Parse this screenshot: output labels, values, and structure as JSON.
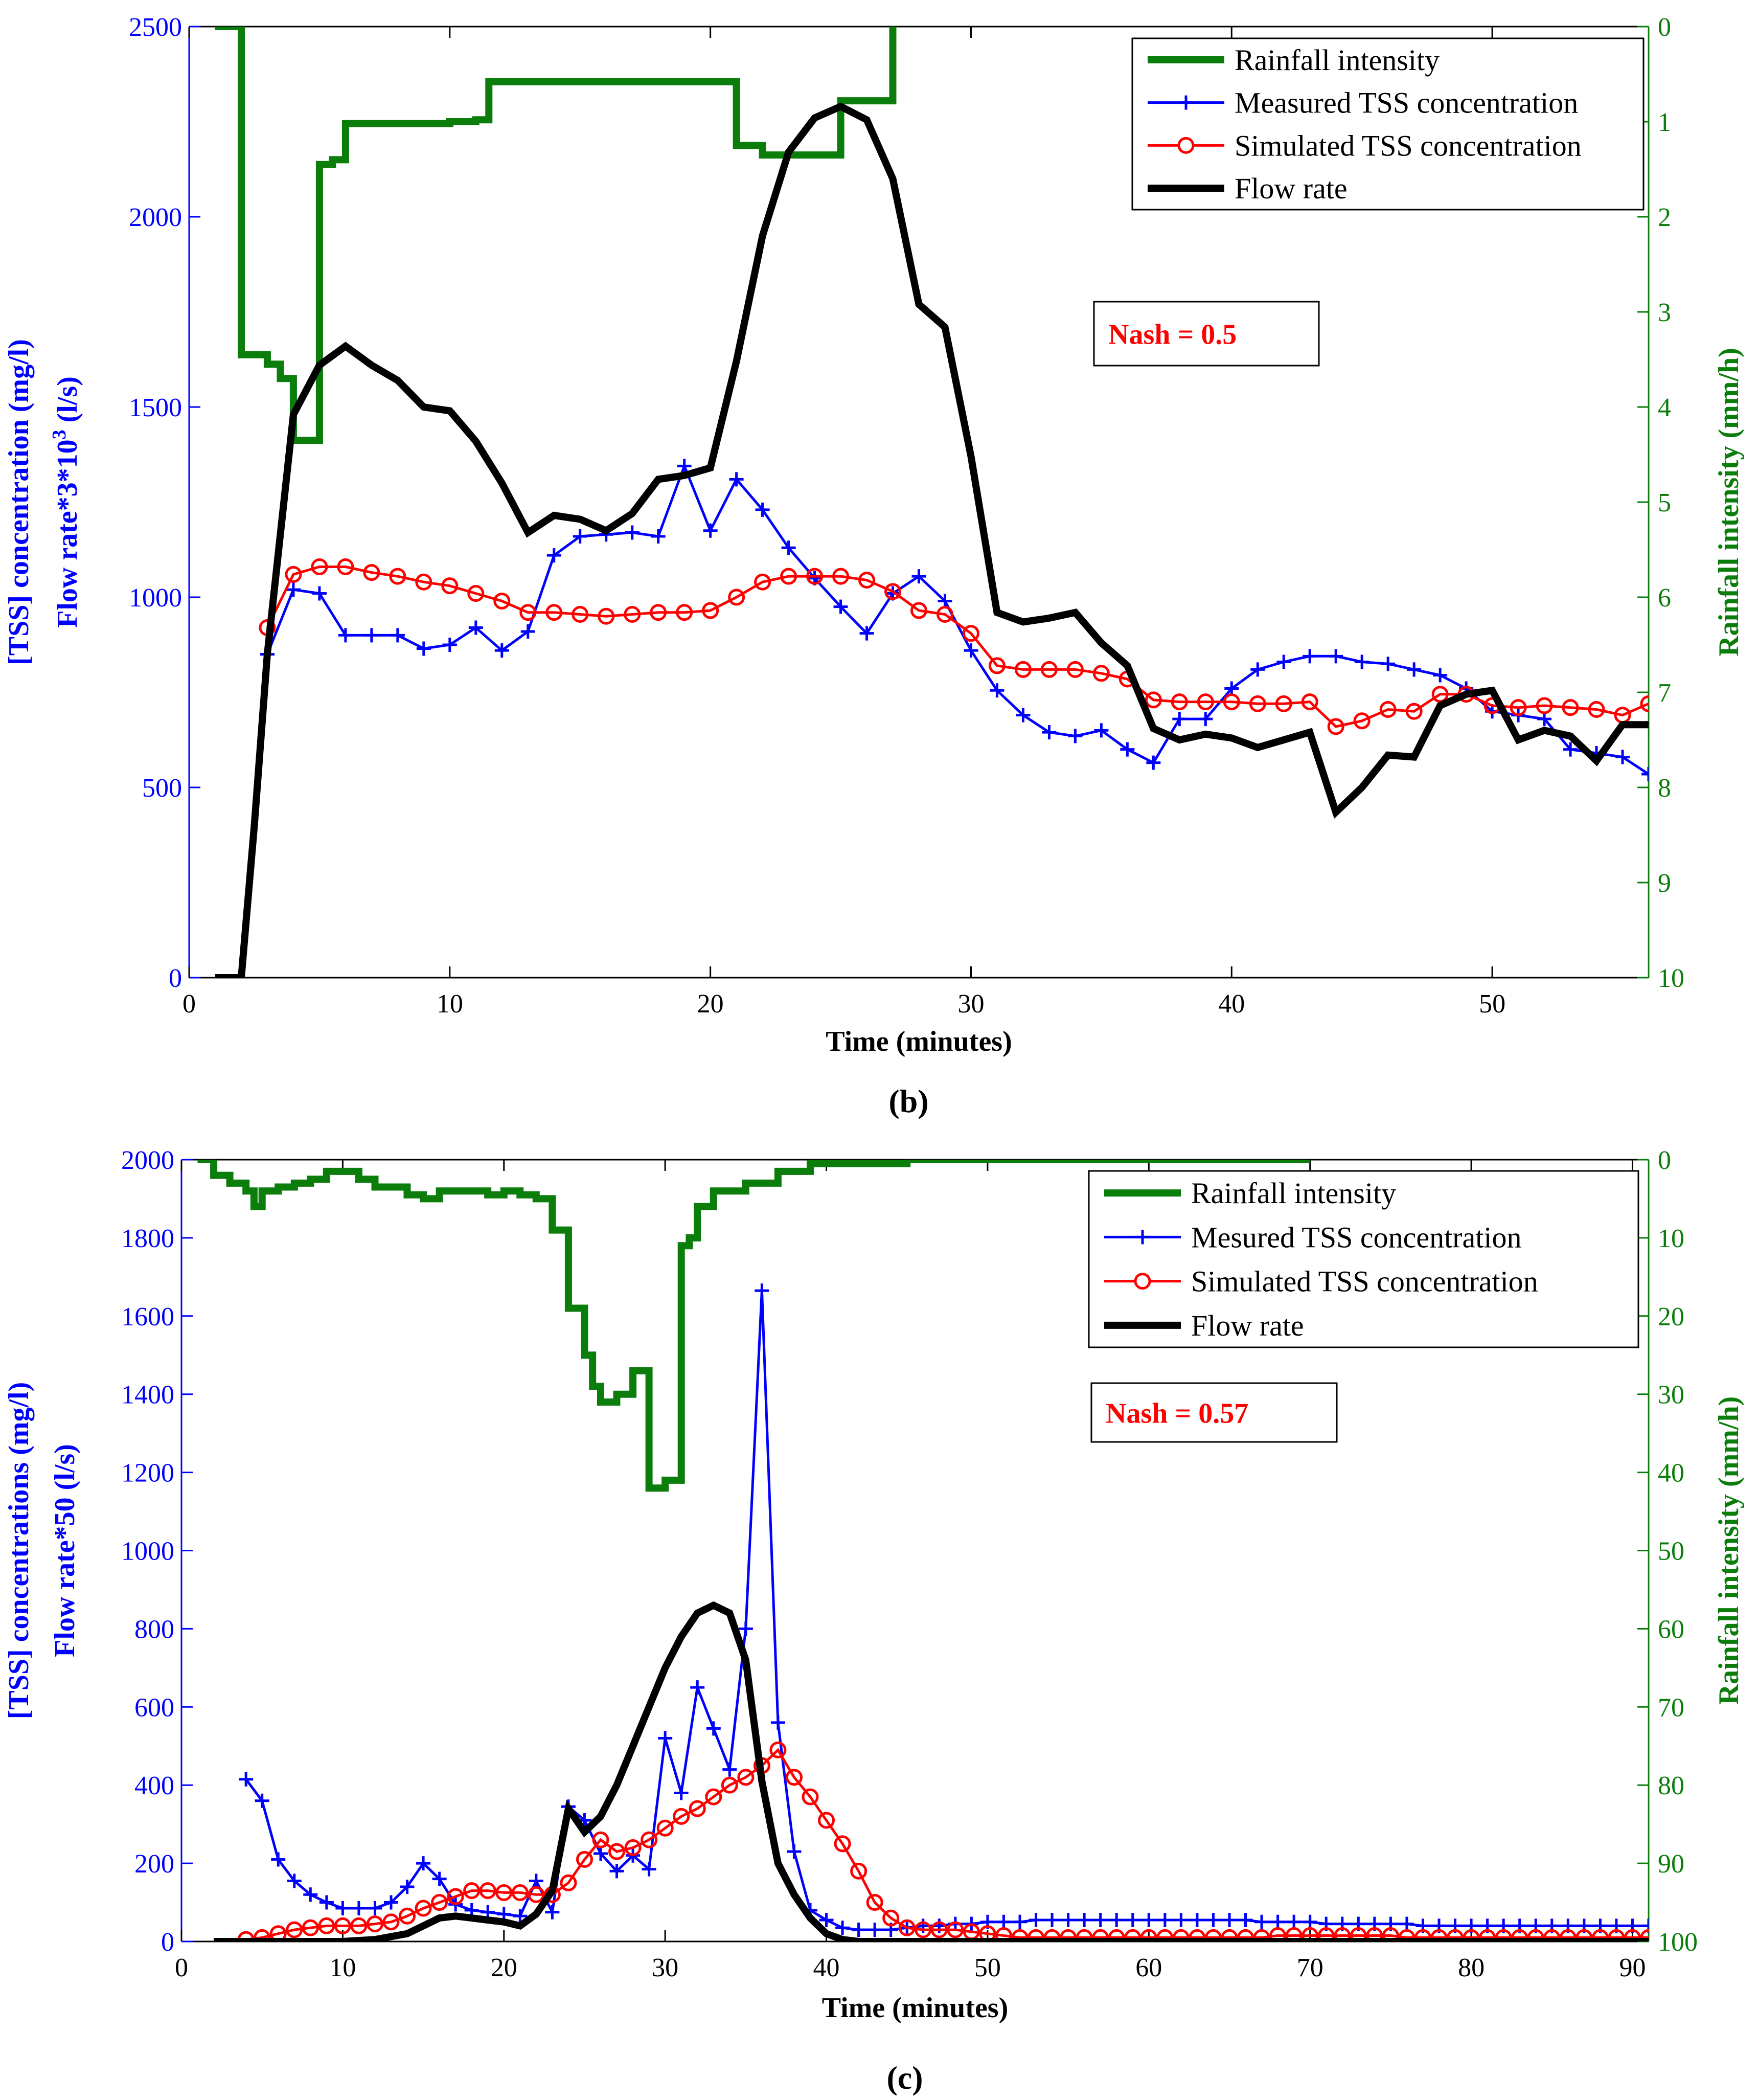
{
  "colors": {
    "rain": "#0b7d0b",
    "measured": "#0000ff",
    "simulated": "#ff0000",
    "flow": "#000000",
    "left_axis": "#0000ff",
    "right_axis": "#0b7d0b"
  },
  "chart_data": [
    {
      "type": "line",
      "panel_label": "(b)",
      "xlabel": "Time (minutes)",
      "ylabel_line1": "[TSS] concentration (mg/l)",
      "ylabel_line2": "Flow rate*3*10",
      "ylabel_line2_sup": "3",
      "ylabel_line2_tail": " (l/s)",
      "y2label": "Rainfall intensity (mm/h)",
      "xlim": [
        0,
        56
      ],
      "ylim": [
        0,
        2500
      ],
      "y2lim": [
        0,
        10
      ],
      "y2_reversed": true,
      "xticks": [
        0,
        10,
        20,
        30,
        40,
        50
      ],
      "yticks": [
        0,
        500,
        1000,
        1500,
        2000,
        2500
      ],
      "y2ticks": [
        0,
        1,
        2,
        3,
        4,
        5,
        6,
        7,
        8,
        9,
        10
      ],
      "legend": [
        "Rainfall intensity",
        "Measured TSS concentration",
        "Simulated TSS concentration",
        "Flow rate"
      ],
      "legend_position": "top-right",
      "annotation": "Nash = 0.5",
      "series": [
        {
          "name": "Rainfall intensity",
          "axis": "y2",
          "step": true,
          "x": [
            1,
            2,
            2,
            3,
            3,
            3.5,
            3.5,
            4,
            4,
            4.5,
            4.5,
            5,
            5,
            5.5,
            5.5,
            6,
            6,
            10,
            10,
            11,
            11,
            11.5,
            11.5,
            21,
            21,
            22,
            22,
            25,
            25,
            27,
            27
          ],
          "y": [
            0,
            0,
            3.45,
            3.45,
            3.55,
            3.55,
            3.7,
            3.7,
            4.35,
            4.35,
            4.35,
            4.35,
            1.45,
            1.45,
            1.4,
            1.4,
            1.02,
            1.02,
            1.0,
            1.0,
            0.98,
            0.98,
            0.58,
            0.58,
            1.25,
            1.25,
            1.35,
            1.35,
            0.78,
            0.78,
            0
          ]
        },
        {
          "name": "Measured TSS concentration",
          "axis": "y",
          "marker": "plus",
          "x": [
            3,
            4,
            5,
            6,
            7,
            8,
            9,
            10,
            11,
            12,
            13,
            14,
            15,
            16,
            17,
            18,
            19,
            20,
            21,
            22,
            23,
            24,
            25,
            26,
            27,
            28,
            29,
            30,
            31,
            32,
            33,
            34,
            35,
            36,
            37,
            38,
            39,
            40,
            41,
            42,
            43,
            44,
            45,
            46,
            47,
            48,
            49,
            50,
            51,
            52,
            53,
            54,
            55,
            56
          ],
          "y": [
            850,
            1020,
            1010,
            900,
            900,
            900,
            865,
            875,
            920,
            860,
            910,
            1110,
            1160,
            1165,
            1170,
            1160,
            1345,
            1175,
            1310,
            1230,
            1130,
            1050,
            975,
            905,
            1010,
            1055,
            990,
            860,
            755,
            690,
            645,
            635,
            650,
            600,
            565,
            680,
            680,
            760,
            810,
            830,
            845,
            845,
            830,
            825,
            810,
            795,
            760,
            700,
            690,
            680,
            600,
            590,
            580,
            535
          ]
        },
        {
          "name": "Simulated TSS concentration",
          "axis": "y",
          "marker": "circle",
          "x": [
            3,
            4,
            5,
            6,
            7,
            8,
            9,
            10,
            11,
            12,
            13,
            14,
            15,
            16,
            17,
            18,
            19,
            20,
            21,
            22,
            23,
            24,
            25,
            26,
            27,
            28,
            29,
            30,
            31,
            32,
            33,
            34,
            35,
            36,
            37,
            38,
            39,
            40,
            41,
            42,
            43,
            44,
            45,
            46,
            47,
            48,
            49,
            50,
            51,
            52,
            53,
            54,
            55,
            56
          ],
          "y": [
            920,
            1060,
            1080,
            1080,
            1065,
            1055,
            1040,
            1030,
            1010,
            990,
            960,
            960,
            955,
            950,
            955,
            960,
            960,
            965,
            1000,
            1040,
            1055,
            1055,
            1055,
            1045,
            1015,
            965,
            955,
            905,
            820,
            810,
            810,
            810,
            800,
            785,
            730,
            725,
            725,
            725,
            720,
            720,
            725,
            660,
            675,
            705,
            700,
            745,
            745,
            715,
            710,
            715,
            710,
            705,
            690,
            720
          ]
        },
        {
          "name": "Flow rate",
          "axis": "y",
          "x": [
            1,
            2,
            2.5,
            3,
            4,
            5,
            6,
            7,
            8,
            9,
            10,
            11,
            12,
            13,
            14,
            15,
            16,
            17,
            18,
            19,
            20,
            21,
            22,
            23,
            24,
            25,
            26,
            27,
            28,
            29,
            30,
            31,
            32,
            33,
            34,
            35,
            36,
            37,
            38,
            39,
            40,
            41,
            42,
            43,
            44,
            45,
            46,
            47,
            48,
            49,
            50,
            51,
            52,
            53,
            54,
            55,
            56
          ],
          "y": [
            0,
            0,
            400,
            850,
            1480,
            1610,
            1660,
            1610,
            1570,
            1500,
            1490,
            1410,
            1300,
            1170,
            1215,
            1205,
            1175,
            1220,
            1310,
            1320,
            1340,
            1620,
            1950,
            2170,
            2260,
            2290,
            2255,
            2100,
            1770,
            1710,
            1370,
            960,
            935,
            945,
            960,
            880,
            820,
            655,
            625,
            640,
            630,
            605,
            625,
            645,
            435,
            500,
            585,
            580,
            715,
            745,
            755,
            625,
            650,
            635,
            570,
            665,
            665
          ]
        }
      ]
    },
    {
      "type": "line",
      "panel_label": "(c)",
      "xlabel": "Time (minutes)",
      "ylabel_line1": "[TSS] concentrations (mg/l)",
      "ylabel_line2": "Flow rate*50 (l/s)",
      "y2label": "Rainfall intensity (mm/h)",
      "xlim": [
        0,
        91
      ],
      "ylim": [
        0,
        2000
      ],
      "y2lim": [
        0,
        100
      ],
      "y2_reversed": true,
      "xticks": [
        0,
        10,
        20,
        30,
        40,
        50,
        60,
        70,
        80,
        90
      ],
      "yticks": [
        0,
        200,
        400,
        600,
        800,
        1000,
        1200,
        1400,
        1600,
        1800,
        2000
      ],
      "y2ticks": [
        0,
        10,
        20,
        30,
        40,
        50,
        60,
        70,
        80,
        90,
        100
      ],
      "legend": [
        "Rainfall intensity",
        "Mesured TSS concentration",
        "Simulated TSS concentration",
        "Flow rate"
      ],
      "legend_position": "top-right",
      "annotation": "Nash = 0.57",
      "series": [
        {
          "name": "Rainfall intensity",
          "axis": "y2",
          "step": true,
          "x": [
            1,
            2,
            2,
            3,
            3,
            4,
            4,
            4.5,
            4.5,
            5,
            5,
            6,
            6,
            7,
            7,
            8,
            8,
            9,
            9,
            11,
            11,
            12,
            12,
            14,
            14,
            15,
            15,
            16,
            16,
            19,
            19,
            20,
            20,
            21,
            21,
            22,
            22,
            23,
            23,
            24,
            24,
            25,
            25,
            25.5,
            25.5,
            26,
            26,
            27,
            27,
            28,
            28,
            29,
            29,
            30,
            30,
            31,
            31,
            31.5,
            31.5,
            32,
            32,
            33,
            33,
            35,
            35,
            37,
            37,
            39,
            39,
            45,
            45,
            70
          ],
          "y": [
            0,
            0,
            2,
            2,
            3,
            3,
            4,
            4,
            6,
            6,
            4,
            4,
            3.5,
            3.5,
            3,
            3,
            2.5,
            2.5,
            1.5,
            1.5,
            2.5,
            2.5,
            3.5,
            3.5,
            4.5,
            4.5,
            5,
            5,
            4,
            4,
            4.5,
            4.5,
            4,
            4,
            4.5,
            4.5,
            5,
            5,
            9,
            9,
            19,
            19,
            25,
            25,
            29,
            29,
            31,
            31,
            30,
            30,
            27,
            27,
            42,
            42,
            41,
            41,
            11,
            11,
            10,
            10,
            6,
            6,
            4,
            4,
            3,
            3,
            1.5,
            1.5,
            0.5,
            0.5,
            0,
            0
          ]
        },
        {
          "name": "Mesured TSS concentration",
          "axis": "y",
          "marker": "plus",
          "x": [
            4,
            5,
            6,
            7,
            8,
            9,
            10,
            11,
            12,
            13,
            14,
            15,
            16,
            17,
            18,
            19,
            20,
            21,
            22,
            23,
            24,
            25,
            26,
            27,
            28,
            29,
            30,
            31,
            32,
            33,
            34,
            35,
            36,
            37,
            38,
            39,
            40,
            41,
            42,
            43,
            44,
            45,
            46,
            47,
            48,
            49,
            50,
            51,
            52,
            53,
            54,
            55,
            56,
            57,
            58,
            59,
            60,
            61,
            62,
            63,
            64,
            65,
            66,
            67,
            68,
            69,
            70,
            71,
            72,
            73,
            74,
            75,
            76,
            77,
            78,
            79,
            80,
            81,
            82,
            83,
            84,
            85,
            86,
            87,
            88,
            89,
            90,
            91
          ],
          "y": [
            415,
            360,
            210,
            155,
            120,
            100,
            85,
            85,
            85,
            100,
            140,
            200,
            160,
            95,
            80,
            75,
            70,
            65,
            155,
            75,
            345,
            310,
            225,
            180,
            220,
            185,
            520,
            380,
            650,
            545,
            440,
            800,
            1665,
            560,
            230,
            80,
            55,
            35,
            30,
            30,
            30,
            35,
            40,
            40,
            45,
            45,
            50,
            50,
            50,
            55,
            55,
            55,
            55,
            55,
            55,
            55,
            55,
            55,
            55,
            55,
            55,
            55,
            55,
            50,
            50,
            50,
            50,
            45,
            45,
            45,
            45,
            45,
            45,
            40,
            40,
            40,
            40,
            40,
            40,
            40,
            40,
            40,
            40,
            40,
            40,
            40,
            40,
            40
          ]
        },
        {
          "name": "Simulated TSS concentration",
          "axis": "y",
          "marker": "circle",
          "x": [
            4,
            5,
            6,
            7,
            8,
            9,
            10,
            11,
            12,
            13,
            14,
            15,
            16,
            17,
            18,
            19,
            20,
            21,
            22,
            23,
            24,
            25,
            26,
            27,
            28,
            29,
            30,
            31,
            32,
            33,
            34,
            35,
            36,
            37,
            38,
            39,
            40,
            41,
            42,
            43,
            44,
            45,
            46,
            47,
            48,
            49,
            50,
            51,
            52,
            53,
            54,
            55,
            56,
            57,
            58,
            59,
            60,
            61,
            62,
            63,
            64,
            65,
            66,
            67,
            68,
            69,
            70,
            71,
            72,
            73,
            74,
            75,
            76,
            77,
            78,
            79,
            80,
            81,
            82,
            83,
            84,
            85,
            86,
            87,
            88,
            89,
            90,
            91
          ],
          "y": [
            5,
            10,
            20,
            30,
            35,
            40,
            40,
            40,
            45,
            50,
            65,
            85,
            100,
            115,
            130,
            130,
            125,
            125,
            120,
            120,
            150,
            210,
            260,
            230,
            240,
            260,
            290,
            320,
            340,
            370,
            400,
            420,
            450,
            490,
            420,
            370,
            310,
            250,
            180,
            100,
            60,
            35,
            30,
            30,
            30,
            25,
            20,
            15,
            10,
            10,
            10,
            10,
            10,
            10,
            10,
            10,
            10,
            10,
            10,
            10,
            10,
            10,
            10,
            10,
            15,
            15,
            15,
            15,
            15,
            15,
            15,
            15,
            10,
            10,
            10,
            10,
            10,
            10,
            10,
            10,
            10,
            10,
            10,
            10,
            10,
            10,
            10,
            10
          ]
        },
        {
          "name": "Flow rate",
          "axis": "y",
          "x": [
            2,
            6,
            10,
            12,
            14,
            15,
            16,
            17,
            18,
            19,
            20,
            21,
            22,
            23,
            24,
            25,
            26,
            27,
            28,
            29,
            30,
            31,
            32,
            33,
            34,
            35,
            36,
            37,
            38,
            39,
            40,
            41,
            42,
            44,
            91
          ],
          "y": [
            0,
            0,
            0,
            5,
            20,
            40,
            60,
            65,
            60,
            55,
            50,
            40,
            70,
            130,
            340,
            280,
            320,
            400,
            500,
            600,
            700,
            780,
            840,
            860,
            840,
            720,
            410,
            200,
            120,
            60,
            20,
            5,
            0,
            0,
            0
          ]
        }
      ]
    }
  ]
}
